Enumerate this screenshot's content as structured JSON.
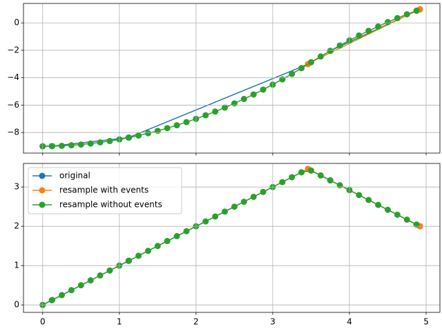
{
  "chart_data": [
    {
      "type": "line",
      "grid": true,
      "x_tick_labels": false,
      "xlim": [
        -0.25,
        5.18
      ],
      "ylim": [
        -9.5,
        1.42
      ],
      "xticks": [
        0,
        1,
        2,
        3,
        4,
        5
      ],
      "yticks": [
        0,
        {
          "value": -2,
          "label": "−2"
        },
        {
          "value": -4,
          "label": "−4"
        },
        {
          "value": -6,
          "label": "−6"
        },
        {
          "value": -8,
          "label": "−8"
        }
      ],
      "series": [
        {
          "color": "#1f77b4",
          "x": [
            0,
            0.12,
            1.12,
            3.46,
            3.75,
            4.92
          ],
          "values": [
            -9,
            -8.99,
            -8.37,
            -3.01,
            -2.04,
            0.99
          ]
        },
        {
          "color": "#ff7f0e",
          "x": [
            3.375,
            3.46,
            3.5,
            4.875,
            4.92
          ],
          "values": [
            -3.3,
            -3.01,
            -2.87,
            0.89,
            0.99
          ]
        },
        {
          "color": "#2ca02c",
          "x": [
            0,
            0.125,
            0.25,
            0.375,
            0.5,
            0.625,
            0.75,
            0.875,
            1,
            1.125,
            1.25,
            1.375,
            1.5,
            1.625,
            1.75,
            1.875,
            2,
            2.125,
            2.25,
            2.375,
            2.5,
            2.625,
            2.75,
            2.875,
            3,
            3.125,
            3.25,
            3.375,
            3.5,
            3.625,
            3.75,
            3.875,
            4,
            4.125,
            4.25,
            4.375,
            4.5,
            4.625,
            4.75,
            4.875
          ],
          "values": [
            -9,
            -8.99,
            -8.97,
            -8.93,
            -8.875,
            -8.8,
            -8.72,
            -8.62,
            -8.5,
            -8.37,
            -8.22,
            -8.05,
            -7.875,
            -7.68,
            -7.47,
            -7.24,
            -7,
            -6.74,
            -6.47,
            -6.18,
            -5.875,
            -5.55,
            -5.22,
            -4.87,
            -4.5,
            -4.12,
            -3.72,
            -3.3,
            -2.87,
            -2.45,
            -2.04,
            -1.65,
            -1.28,
            -0.92,
            -0.58,
            -0.26,
            0.06,
            0.35,
            0.63,
            0.89
          ]
        }
      ]
    },
    {
      "type": "line",
      "grid": true,
      "legend": "upper left",
      "xlim": [
        -0.25,
        5.18
      ],
      "ylim": [
        -0.19,
        3.6
      ],
      "xticks": [
        0,
        1,
        2,
        3,
        4,
        5
      ],
      "yticks": [
        0,
        1,
        2,
        3
      ],
      "series": [
        {
          "name": "original",
          "color": "#1f77b4",
          "x": [
            0,
            0.12,
            1.12,
            3.46,
            3.75,
            4.92
          ],
          "values": [
            0,
            0.12,
            1.12,
            3.46,
            3.17,
            2.0
          ]
        },
        {
          "name": "resample with events",
          "color": "#ff7f0e",
          "x": [
            3.375,
            3.46,
            3.5,
            4.875,
            4.92
          ],
          "values": [
            3.375,
            3.46,
            3.42,
            2.045,
            2.0
          ]
        },
        {
          "name": "resample without events",
          "color": "#2ca02c",
          "x": [
            0,
            0.125,
            0.25,
            0.375,
            0.5,
            0.625,
            0.75,
            0.875,
            1,
            1.125,
            1.25,
            1.375,
            1.5,
            1.625,
            1.75,
            1.875,
            2,
            2.125,
            2.25,
            2.375,
            2.5,
            2.625,
            2.75,
            2.875,
            3,
            3.125,
            3.25,
            3.375,
            3.5,
            3.625,
            3.75,
            3.875,
            4,
            4.125,
            4.25,
            4.375,
            4.5,
            4.625,
            4.75,
            4.875
          ],
          "values": [
            0,
            0.125,
            0.25,
            0.375,
            0.5,
            0.625,
            0.75,
            0.875,
            1,
            1.125,
            1.25,
            1.375,
            1.5,
            1.625,
            1.75,
            1.875,
            2,
            2.125,
            2.25,
            2.375,
            2.5,
            2.625,
            2.75,
            2.875,
            3,
            3.125,
            3.25,
            3.375,
            3.42,
            3.295,
            3.17,
            3.045,
            2.92,
            2.795,
            2.67,
            2.545,
            2.42,
            2.295,
            2.17,
            2.045
          ]
        }
      ]
    }
  ]
}
